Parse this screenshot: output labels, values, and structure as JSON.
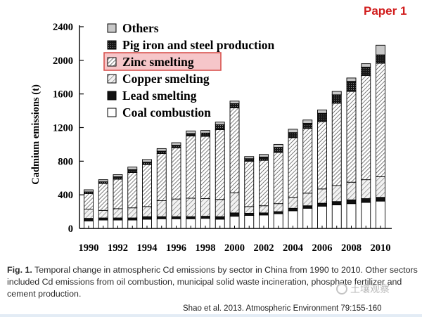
{
  "badge": "Paper 1",
  "caption": {
    "label": "Fig. 1.",
    "text": "Temporal change in atmospheric Cd emissions by sector in China from 1990 to 2010. Other sectors included Cd emissions from oil combustion, municipal solid waste incineration, phosphate fertilizer and cement production."
  },
  "citation": "Shao et al. 2013. Atmospheric Environment 79:155-160",
  "watermark": "土壤观察",
  "colors": {
    "highlight_box": "#d9534f",
    "highlight_fill": "#f6c6c9",
    "badge": "#d11d1d",
    "others": "#c8c8c8",
    "dark_marks": "#111111"
  },
  "chart_data": {
    "type": "bar",
    "stacked": true,
    "title": "",
    "xlabel": "",
    "ylabel": "Cadmium emissions (t)",
    "ylim": [
      0,
      2400
    ],
    "yticks": [
      "0",
      "400",
      "800",
      "1200",
      "1600",
      "2000",
      "2400"
    ],
    "categories": [
      "1990",
      "1991",
      "1992",
      "1993",
      "1994",
      "1995",
      "1996",
      "1997",
      "1998",
      "1999",
      "2000",
      "2001",
      "2002",
      "2003",
      "2004",
      "2005",
      "2006",
      "2007",
      "2008",
      "2009",
      "2010"
    ],
    "xtick_labels": [
      "1990",
      "1992",
      "1994",
      "1996",
      "1998",
      "2000",
      "2002",
      "2004",
      "2006",
      "2008",
      "2010"
    ],
    "legend_position": "top-left",
    "highlighted_series": "Zinc smelting",
    "series": [
      {
        "name": "Coal combustion",
        "pattern": "white",
        "values": [
          90,
          100,
          100,
          100,
          110,
          115,
          115,
          115,
          120,
          110,
          145,
          155,
          160,
          175,
          210,
          240,
          265,
          280,
          295,
          310,
          325
        ]
      },
      {
        "name": "Lead smelting",
        "pattern": "black",
        "values": [
          30,
          25,
          25,
          25,
          30,
          25,
          25,
          25,
          25,
          30,
          40,
          25,
          25,
          25,
          30,
          30,
          35,
          40,
          45,
          45,
          45
        ]
      },
      {
        "name": "Copper smelting",
        "pattern": "wide-hatch",
        "values": [
          110,
          90,
          110,
          120,
          120,
          190,
          210,
          220,
          210,
          205,
          240,
          80,
          85,
          95,
          130,
          150,
          170,
          190,
          210,
          225,
          245
        ]
      },
      {
        "name": "Zinc smelting",
        "pattern": "dense-hatch",
        "values": [
          185,
          320,
          350,
          420,
          500,
          560,
          610,
          740,
          740,
          830,
          1010,
          540,
          540,
          610,
          710,
          770,
          800,
          980,
          1080,
          1240,
          1350
        ]
      },
      {
        "name": "Pig iron and steel production",
        "pattern": "dark-dotted",
        "values": [
          20,
          20,
          30,
          35,
          30,
          30,
          30,
          30,
          40,
          60,
          50,
          30,
          40,
          60,
          60,
          60,
          100,
          100,
          120,
          100,
          100
        ]
      },
      {
        "name": "Others",
        "pattern": "gray",
        "values": [
          25,
          25,
          25,
          30,
          30,
          30,
          30,
          30,
          30,
          30,
          30,
          25,
          30,
          35,
          40,
          40,
          40,
          40,
          40,
          40,
          115
        ]
      }
    ]
  }
}
